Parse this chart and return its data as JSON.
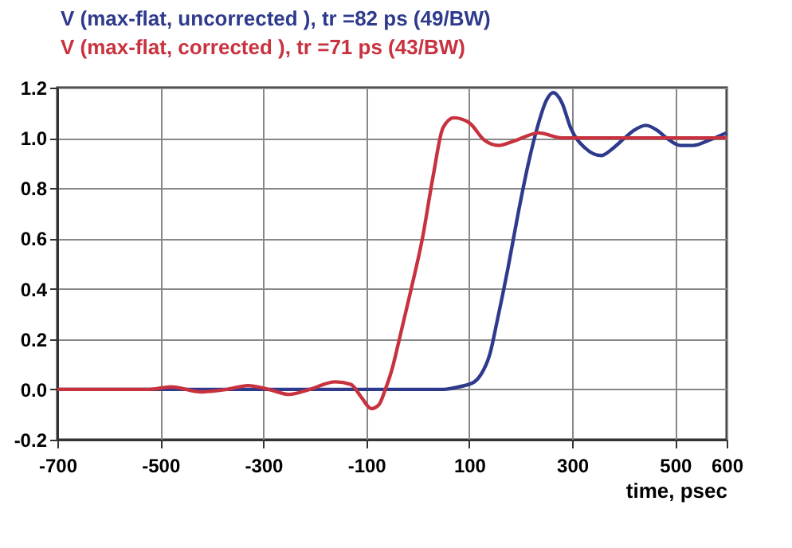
{
  "chart_data": {
    "type": "line",
    "xlabel": "time, psec",
    "xlim": [
      -700,
      600
    ],
    "xticks": [
      -700,
      -500,
      -300,
      -100,
      100,
      300,
      500,
      600
    ],
    "ylim": [
      -0.2,
      1.2
    ],
    "yticks": [
      {
        "value": -0.2,
        "label": "-0.2"
      },
      {
        "value": 0,
        "label": "0.0"
      },
      {
        "value": 0.2,
        "label": "0.2"
      },
      {
        "value": 0.4,
        "label": "0.4"
      },
      {
        "value": 0.6,
        "label": "0.6"
      },
      {
        "value": 0.8,
        "label": "0.8"
      },
      {
        "value": 1.0,
        "label": "1.0"
      },
      {
        "value": 1.2,
        "label": "1.2"
      }
    ],
    "grid": true,
    "legend": "top",
    "line_style": "solid",
    "series": [
      {
        "name": "V (max-flat, uncorrected ), tr =82 ps (49/BW)",
        "color": "#2e3a8c",
        "x": [
          -700,
          -500,
          -300,
          -100,
          50,
          80,
          110,
          123,
          140,
          154,
          175,
          195,
          215,
          232,
          250,
          263,
          280,
          297,
          325,
          356,
          380,
          402,
          420,
          443,
          465,
          483,
          510,
          535,
          565,
          600
        ],
        "values": [
          0,
          0,
          0,
          0,
          0,
          0.01,
          0.03,
          0.06,
          0.14,
          0.27,
          0.48,
          0.7,
          0.9,
          1.04,
          1.15,
          1.18,
          1.14,
          1.04,
          0.96,
          0.93,
          0.96,
          1.0,
          1.03,
          1.05,
          1.03,
          1.0,
          0.97,
          0.97,
          0.99,
          1.02
        ]
      },
      {
        "name": "V (max-flat, corrected ), tr =71 ps (43/BW)",
        "color": "#c8323f",
        "x": [
          -700,
          -520,
          -480,
          -420,
          -370,
          -330,
          -290,
          -250,
          -210,
          -160,
          -130,
          -110,
          -90,
          -75,
          -63,
          -50,
          -38,
          -15,
          9,
          30,
          49,
          70,
          100,
          130,
          157,
          190,
          235,
          280,
          330,
          400,
          500,
          600
        ],
        "values": [
          0,
          0,
          0.01,
          -0.01,
          0,
          0.015,
          0,
          -0.02,
          0,
          0.03,
          0.02,
          -0.03,
          -0.077,
          -0.06,
          0,
          0.08,
          0.18,
          0.38,
          0.6,
          0.85,
          1.04,
          1.08,
          1.06,
          0.99,
          0.97,
          0.99,
          1.02,
          1.0,
          1.0,
          1.0,
          1.0,
          1.0
        ]
      }
    ]
  }
}
